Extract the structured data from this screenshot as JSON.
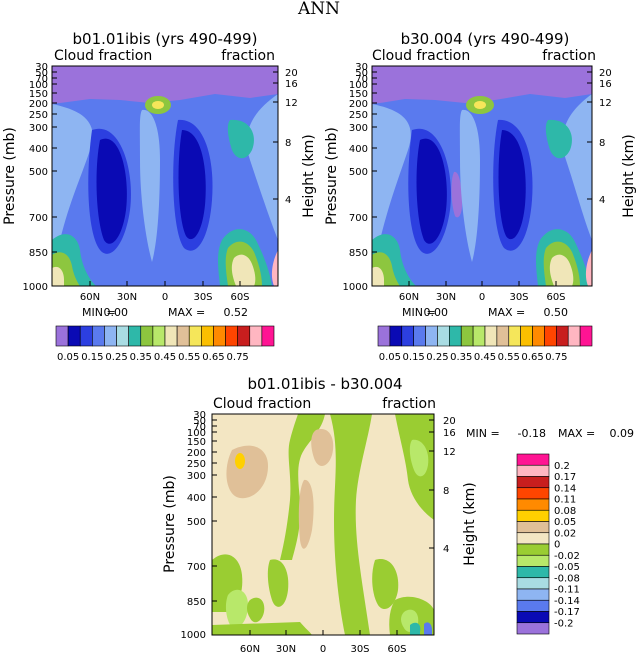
{
  "figure_title": "ANN",
  "chart_data": [
    {
      "type": "contour",
      "title": "b01.01ibis (yrs 490-499)",
      "left_label": "Cloud fraction",
      "right_label": "fraction",
      "ylabel": "Pressure (mb)",
      "ylabel_right": "Height (km)",
      "xticks": [
        "60N",
        "30N",
        "0",
        "30S",
        "60S"
      ],
      "yticks": [
        "30",
        "50",
        "70",
        "100",
        "150",
        "200",
        "250",
        "300",
        "400",
        "500",
        "700",
        "850",
        "1000"
      ],
      "yticks_right": [
        "20",
        "16",
        "12",
        "8",
        "4"
      ],
      "min_label": "MIN =",
      "min": "0.00",
      "max_label": "MAX =",
      "max": "0.52"
    },
    {
      "type": "contour",
      "title": "b30.004 (yrs 490-499)",
      "left_label": "Cloud fraction",
      "right_label": "fraction",
      "ylabel": "Pressure (mb)",
      "ylabel_right": "Height (km)",
      "xticks": [
        "60N",
        "30N",
        "0",
        "30S",
        "60S"
      ],
      "yticks": [
        "30",
        "50",
        "70",
        "100",
        "150",
        "200",
        "250",
        "300",
        "400",
        "500",
        "700",
        "850",
        "1000"
      ],
      "yticks_right": [
        "20",
        "16",
        "12",
        "8",
        "4"
      ],
      "min_label": "MIN =",
      "min": "0.00",
      "max_label": "MAX =",
      "max": "0.50"
    },
    {
      "type": "contour",
      "title": "b01.01ibis - b30.004",
      "left_label": "Cloud fraction",
      "right_label": "fraction",
      "ylabel": "Pressure (mb)",
      "ylabel_right": "Height (km)",
      "xticks": [
        "60N",
        "30N",
        "0",
        "30S",
        "60S"
      ],
      "yticks": [
        "30",
        "50",
        "70",
        "100",
        "150",
        "200",
        "250",
        "300",
        "400",
        "500",
        "700",
        "850",
        "1000"
      ],
      "yticks_right": [
        "20",
        "16",
        "12",
        "8",
        "4"
      ],
      "min_label": "MIN =",
      "min": "-0.18",
      "max_label": "MAX =",
      "max": "0.09"
    }
  ],
  "colorbar_main": {
    "labels": [
      "0.05",
      "0.15",
      "0.25",
      "0.35",
      "0.45",
      "0.55",
      "0.65",
      "0.75"
    ],
    "colors": [
      "#9B72DB",
      "#0A0AB4",
      "#2C3FE0",
      "#5A7AEE",
      "#8EB5F2",
      "#A9DCE3",
      "#2EB8A9",
      "#8DC63F",
      "#B8E86A",
      "#F0E6B8",
      "#E0C098",
      "#F5E65A",
      "#FBBF00",
      "#FF8A00",
      "#FF4500",
      "#C81E1E",
      "#FFB6C1",
      "#FF1493"
    ]
  },
  "colorbar_diff": {
    "labels": [
      "0.2",
      "0.17",
      "0.14",
      "0.11",
      "0.08",
      "0.05",
      "0.02",
      "0",
      "-0.02",
      "-0.05",
      "-0.08",
      "-0.11",
      "-0.14",
      "-0.17",
      "-0.2"
    ],
    "colors": [
      "#FF1493",
      "#FFB6C1",
      "#C81E1E",
      "#FF4500",
      "#FF8A00",
      "#FFD000",
      "#E0C098",
      "#F3E6C3",
      "#9ACD32",
      "#B8E86A",
      "#2EB8A9",
      "#A9DCE3",
      "#8EB5F2",
      "#5A7AEE",
      "#0A0AB4",
      "#9B72DB"
    ]
  }
}
